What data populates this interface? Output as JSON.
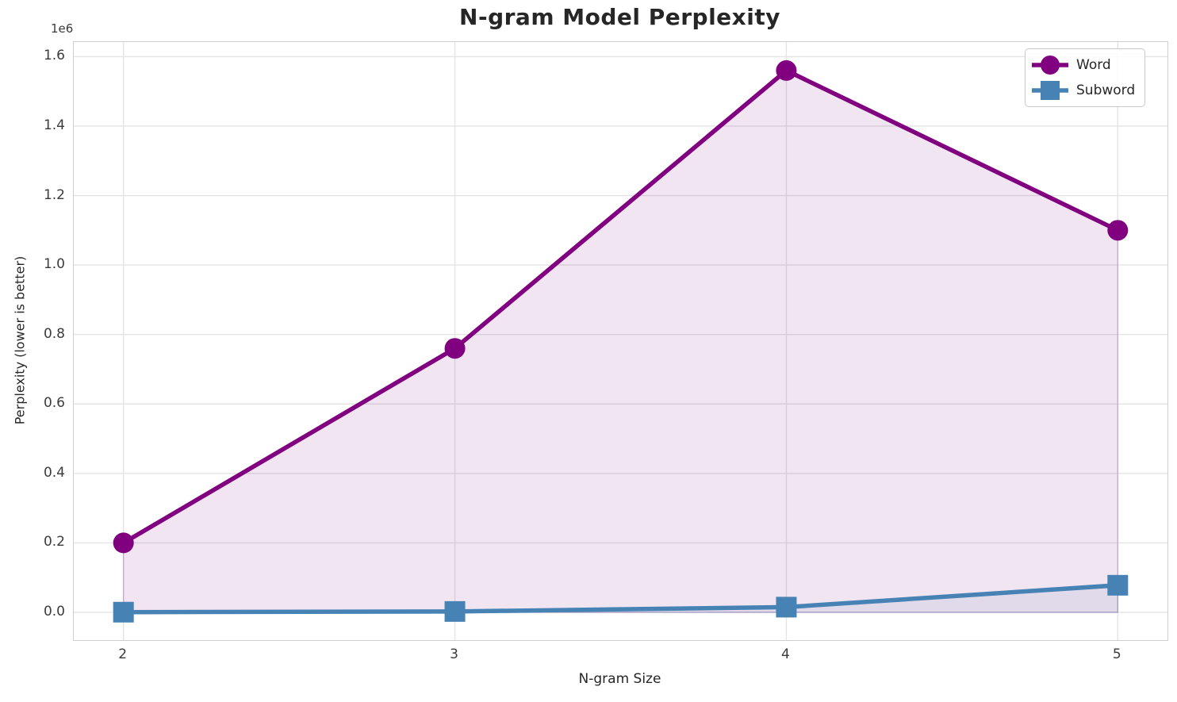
{
  "chart_data": {
    "type": "line",
    "title": "N-gram Model Perplexity",
    "xlabel": "N-gram Size",
    "ylabel": "Perplexity (lower is better)",
    "offset_text": "1e6",
    "x": [
      2,
      3,
      4,
      5
    ],
    "series": [
      {
        "name": "Word",
        "color": "#800080",
        "marker": "circle",
        "line_width": 5.5,
        "fill_to_zero": true,
        "fill_alpha": 0.1,
        "values": [
          200000,
          760000,
          1560000,
          1100000
        ]
      },
      {
        "name": "Subword",
        "color": "#4682B4",
        "marker": "square",
        "line_width": 5.5,
        "fill_to_zero": true,
        "fill_alpha": 0.1,
        "values": [
          500,
          2500,
          15000,
          78000
        ]
      }
    ],
    "xlim": [
      1.85,
      5.15
    ],
    "ylim": [
      -80000,
      1642000
    ],
    "xticks": [
      2,
      3,
      4,
      5
    ],
    "xtick_labels": [
      "2",
      "3",
      "4",
      "5"
    ],
    "yticks": [
      0,
      200000,
      400000,
      600000,
      800000,
      1000000,
      1200000,
      1400000,
      1600000
    ],
    "ytick_labels": [
      "0.0",
      "0.2",
      "0.4",
      "0.6",
      "0.8",
      "1.0",
      "1.2",
      "1.4",
      "1.6"
    ],
    "grid": true,
    "legend_position": "upper right",
    "colors": {
      "grid": "#e4e4e4",
      "spine": "#cfcfcf",
      "text": "#262626",
      "tick_text": "#3b3b3b",
      "background": "#ffffff"
    }
  }
}
